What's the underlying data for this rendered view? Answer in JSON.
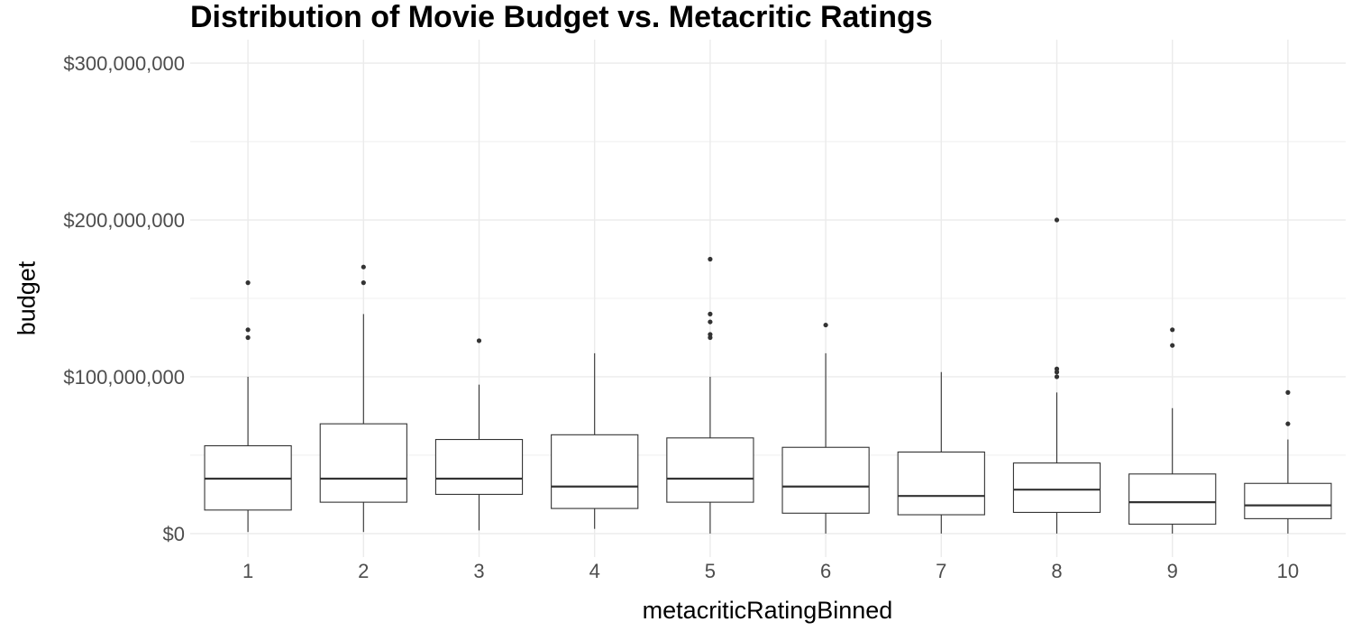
{
  "chart_data": {
    "type": "boxplot",
    "title": "Distribution of Movie Budget vs. Metacritic Ratings",
    "xlabel": "metacriticRatingBinned",
    "ylabel": "budget",
    "categories": [
      "1",
      "2",
      "3",
      "4",
      "5",
      "6",
      "7",
      "8",
      "9",
      "10"
    ],
    "ylim": [
      -15000000,
      315000000
    ],
    "yticks": [
      0,
      100000000,
      200000000,
      300000000
    ],
    "ytick_labels": [
      "$0",
      "$100,000,000",
      "$200,000,000",
      "$300,000,000"
    ],
    "grid": true,
    "boxes": [
      {
        "category": "1",
        "whisker_low": 1000000,
        "q1": 15000000,
        "median": 35000000,
        "q3": 56000000,
        "whisker_high": 100000000,
        "outliers": [
          125000000,
          130000000,
          160000000
        ]
      },
      {
        "category": "2",
        "whisker_low": 1000000,
        "q1": 20000000,
        "median": 35000000,
        "q3": 70000000,
        "whisker_high": 140000000,
        "outliers": [
          160000000,
          170000000
        ]
      },
      {
        "category": "3",
        "whisker_low": 2000000,
        "q1": 25000000,
        "median": 35000000,
        "q3": 60000000,
        "whisker_high": 95000000,
        "outliers": [
          123000000
        ]
      },
      {
        "category": "4",
        "whisker_low": 3000000,
        "q1": 16000000,
        "median": 30000000,
        "q3": 63000000,
        "whisker_high": 115000000,
        "outliers": []
      },
      {
        "category": "5",
        "whisker_low": 0,
        "q1": 20000000,
        "median": 35000000,
        "q3": 61000000,
        "whisker_high": 100000000,
        "outliers": [
          125000000,
          127000000,
          135000000,
          140000000,
          175000000
        ]
      },
      {
        "category": "6",
        "whisker_low": 0,
        "q1": 13000000,
        "median": 30000000,
        "q3": 55000000,
        "whisker_high": 115000000,
        "outliers": [
          133000000
        ]
      },
      {
        "category": "7",
        "whisker_low": 0,
        "q1": 12000000,
        "median": 24000000,
        "q3": 52000000,
        "whisker_high": 103000000,
        "outliers": []
      },
      {
        "category": "8",
        "whisker_low": 0,
        "q1": 13500000,
        "median": 28000000,
        "q3": 45000000,
        "whisker_high": 90000000,
        "outliers": [
          100000000,
          103000000,
          105000000,
          200000000
        ]
      },
      {
        "category": "9",
        "whisker_low": 0,
        "q1": 6000000,
        "median": 20000000,
        "q3": 38000000,
        "whisker_high": 80000000,
        "outliers": [
          120000000,
          130000000
        ]
      },
      {
        "category": "10",
        "whisker_low": 0,
        "q1": 9500000,
        "median": 18000000,
        "q3": 32000000,
        "whisker_high": 60000000,
        "outliers": [
          70000000,
          90000000
        ]
      }
    ],
    "colors": {
      "box_fill": "#ffffff",
      "line": "#333333",
      "grid": "#ebebeb",
      "tick_text": "#4d4d4d"
    }
  }
}
